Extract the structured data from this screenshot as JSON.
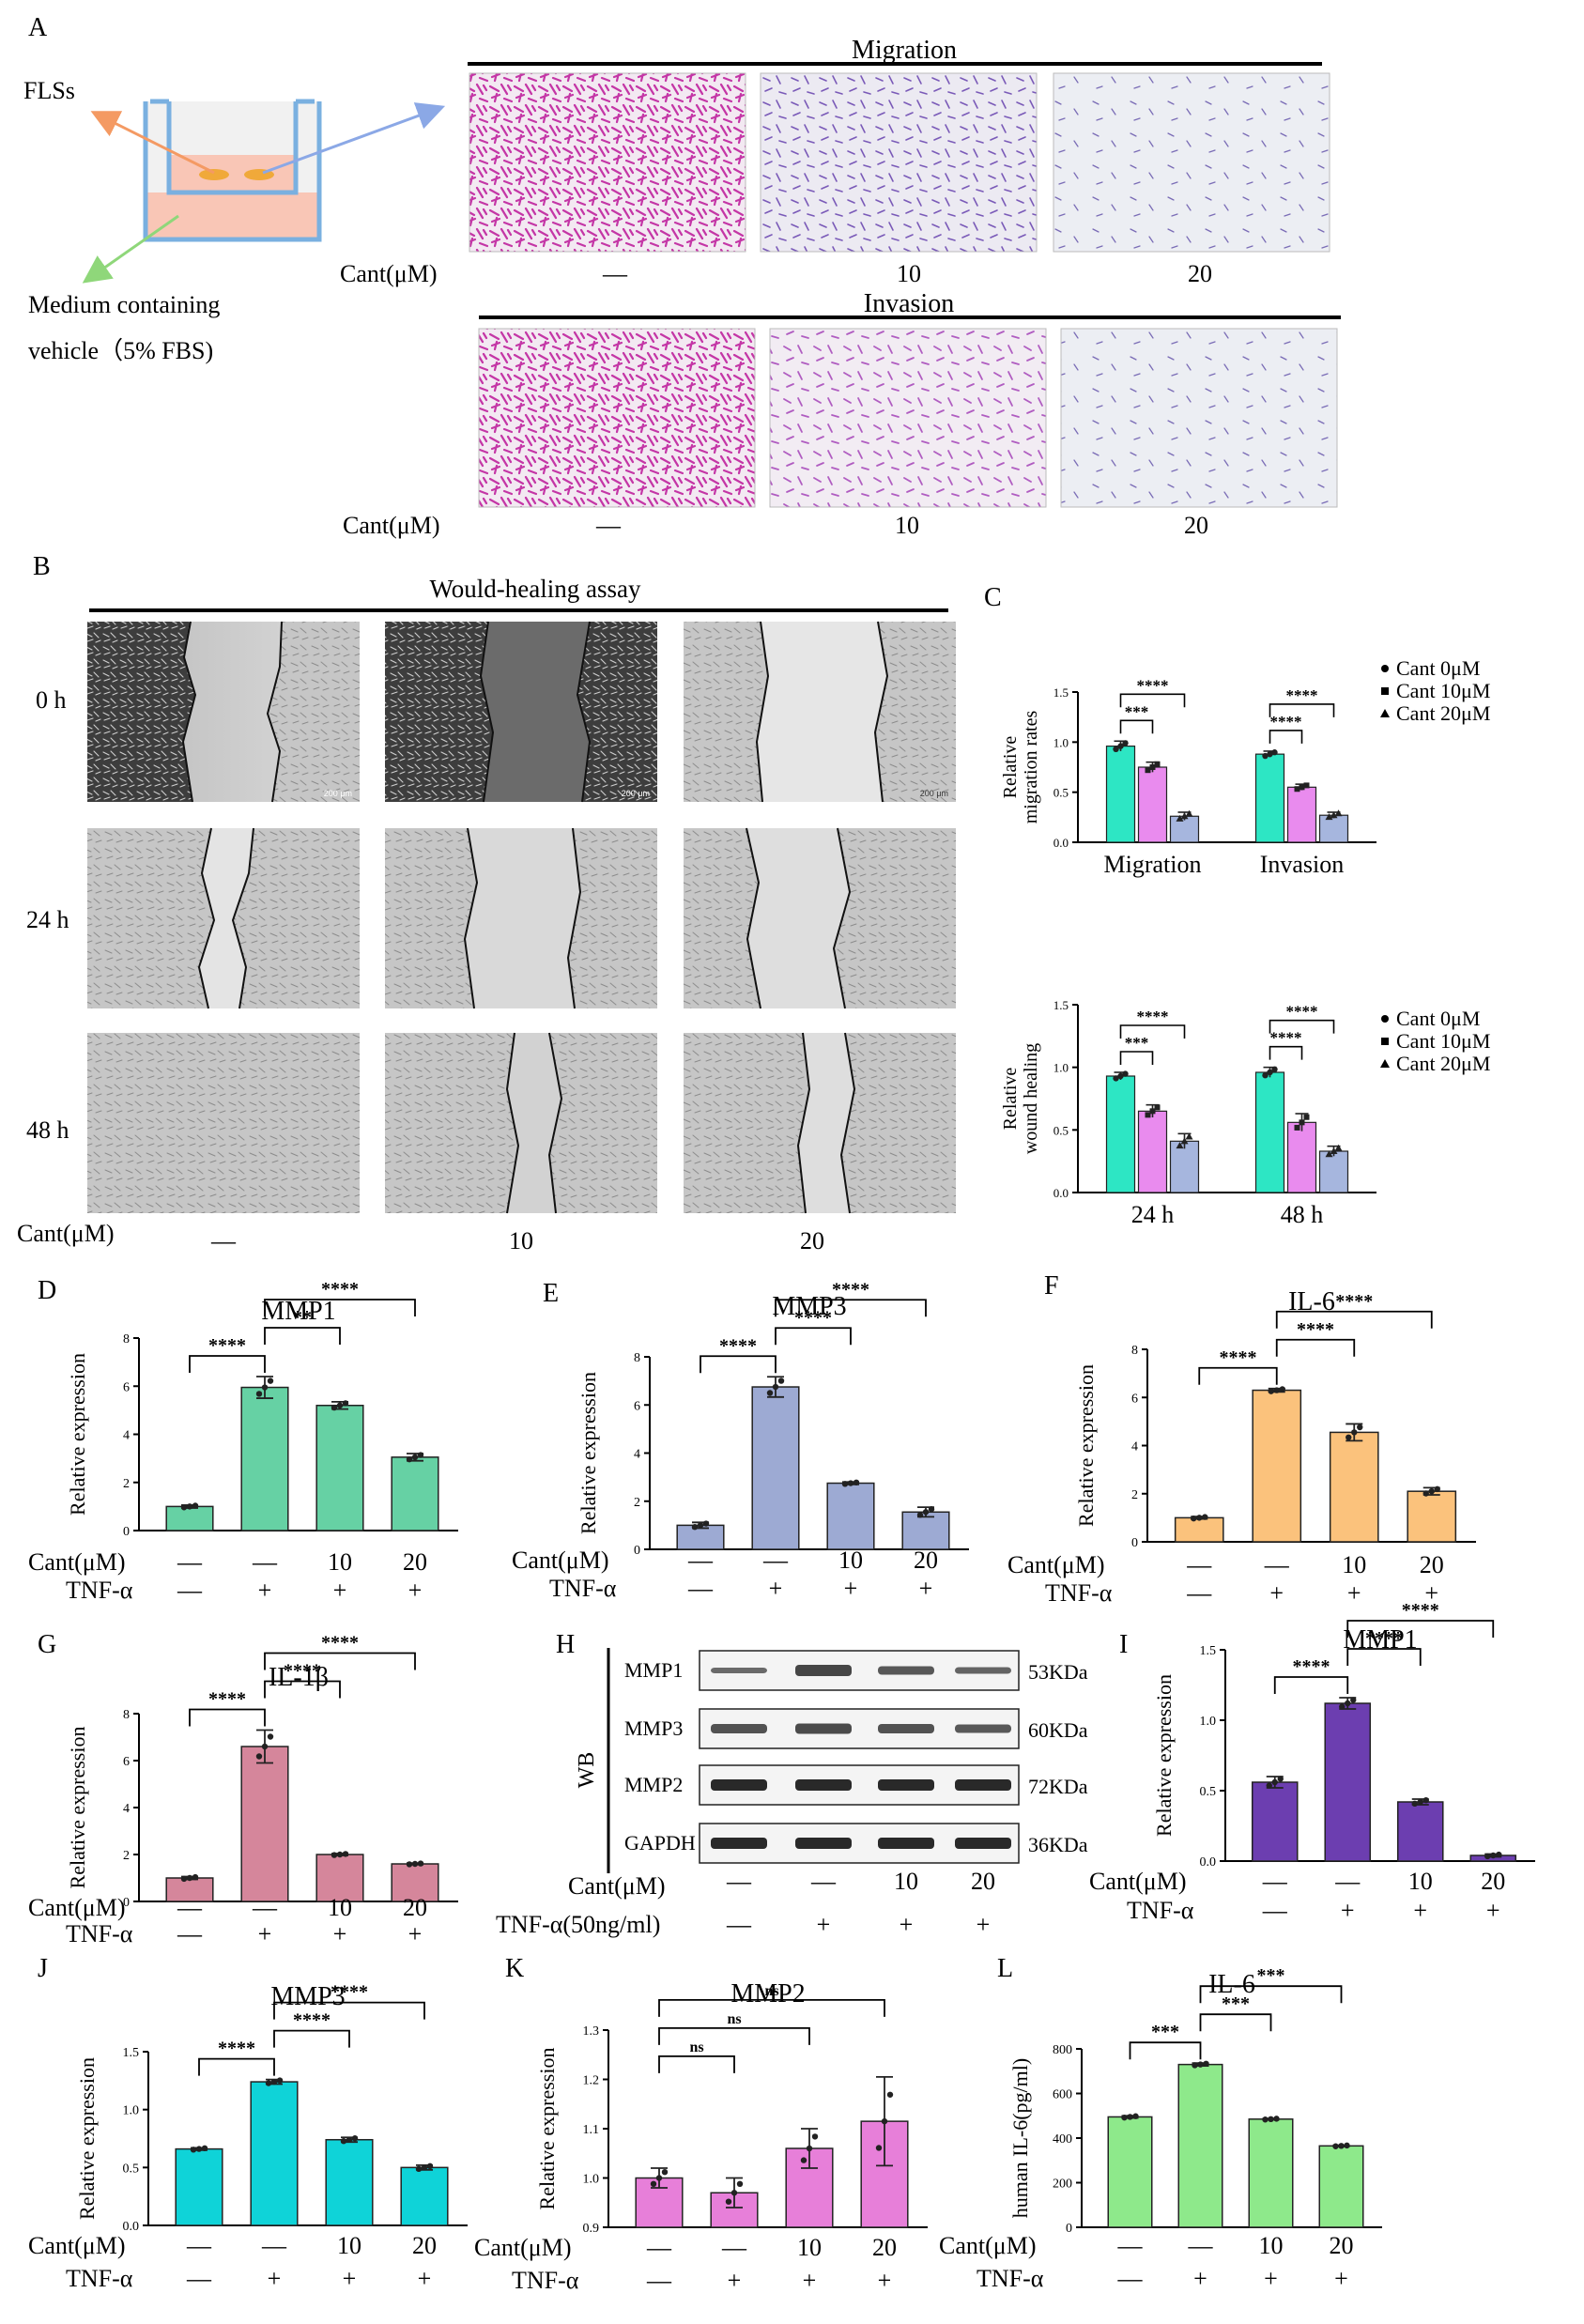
{
  "panel_a": {
    "letter": "A",
    "fls_label": "FLSs",
    "medium_line1": "Medium containing",
    "medium_line2": "vehicle（5% FBS)",
    "migration_title": "Migration",
    "invasion_title": "Invasion",
    "cant_label": "Cant(μM)",
    "doses": [
      "—",
      "10",
      "20"
    ]
  },
  "panel_b": {
    "letter": "B",
    "title": "Would-healing assay",
    "times": [
      "0 h",
      "24 h",
      "48 h"
    ],
    "cant_label": "Cant(μM)",
    "doses": [
      "—",
      "10",
      "20"
    ],
    "scale_label": "200 μm"
  },
  "panel_h": {
    "letter": "H",
    "side_label": "WB",
    "proteins": [
      "MMP1",
      "MMP3",
      "MMP2",
      "GAPDH"
    ],
    "sizes": [
      "53KDa",
      "60KDa",
      "72KDa",
      "36KDa"
    ],
    "cant_label": "Cant(μM)",
    "tnf_label": "TNF-α(50ng/ml)",
    "cant_values": [
      "—",
      "—",
      "10",
      "20"
    ],
    "tnf_values": [
      "—",
      "+",
      "+",
      "+"
    ]
  },
  "chart_data": [
    {
      "id": "C1",
      "letter": "C",
      "type": "bar",
      "ylabel": "Relative migration rates",
      "ylim": [
        0,
        1.5
      ],
      "yticks": [
        0.0,
        0.5,
        1.0,
        1.5
      ],
      "categories": [
        "Migration",
        "Invasion"
      ],
      "series": [
        {
          "name": "Cant 0μM",
          "color": "#2de6c4",
          "marker": "circle",
          "values": [
            0.96,
            0.88
          ],
          "errors": [
            0.05,
            0.03
          ]
        },
        {
          "name": "Cant 10μM",
          "color": "#e98bee",
          "marker": "square",
          "values": [
            0.75,
            0.55
          ],
          "errors": [
            0.05,
            0.03
          ]
        },
        {
          "name": "Cant 20μM",
          "color": "#a6b6de",
          "marker": "triangle",
          "values": [
            0.26,
            0.27
          ],
          "errors": [
            0.04,
            0.03
          ]
        }
      ],
      "significance": [
        {
          "group": 0,
          "from": 0,
          "to": 1,
          "label": "***"
        },
        {
          "group": 0,
          "from": 0,
          "to": 2,
          "label": "****"
        },
        {
          "group": 1,
          "from": 0,
          "to": 1,
          "label": "****"
        },
        {
          "group": 1,
          "from": 0,
          "to": 2,
          "label": "****"
        }
      ],
      "legend": "right"
    },
    {
      "id": "C2",
      "type": "bar",
      "ylabel": "Relative wound healing",
      "ylim": [
        0,
        1.5
      ],
      "yticks": [
        0.0,
        0.5,
        1.0,
        1.5
      ],
      "categories": [
        "24 h",
        "48 h"
      ],
      "series": [
        {
          "name": "Cant 0μM",
          "color": "#2de6c4",
          "marker": "circle",
          "values": [
            0.93,
            0.96
          ],
          "errors": [
            0.03,
            0.04
          ]
        },
        {
          "name": "Cant 10μM",
          "color": "#e98bee",
          "marker": "square",
          "values": [
            0.65,
            0.56
          ],
          "errors": [
            0.05,
            0.07
          ]
        },
        {
          "name": "Cant 20μM",
          "color": "#a6b6de",
          "marker": "triangle",
          "values": [
            0.41,
            0.33
          ],
          "errors": [
            0.06,
            0.04
          ]
        }
      ],
      "significance": [
        {
          "group": 0,
          "from": 0,
          "to": 1,
          "label": "***"
        },
        {
          "group": 0,
          "from": 0,
          "to": 2,
          "label": "****"
        },
        {
          "group": 1,
          "from": 0,
          "to": 1,
          "label": "****"
        },
        {
          "group": 1,
          "from": 0,
          "to": 2,
          "label": "****"
        }
      ],
      "legend": "right"
    },
    {
      "id": "D",
      "letter": "D",
      "type": "bar",
      "title": "MMP1",
      "ylabel": "Relative expression",
      "color": "#66d1a4",
      "ylim": [
        0,
        8
      ],
      "yticks": [
        0,
        2,
        4,
        6,
        8
      ],
      "values": [
        1.0,
        5.95,
        5.2,
        3.05
      ],
      "errors": [
        0.06,
        0.45,
        0.15,
        0.15
      ],
      "cant": [
        "—",
        "—",
        "10",
        "20"
      ],
      "tnf": [
        "—",
        "+",
        "+",
        "+"
      ],
      "significance": [
        {
          "from": 0,
          "to": 1,
          "label": "****"
        },
        {
          "from": 1,
          "to": 2,
          "label": "**"
        },
        {
          "from": 1,
          "to": 3,
          "label": "****"
        }
      ]
    },
    {
      "id": "E",
      "letter": "E",
      "type": "bar",
      "title": "MMP3",
      "ylabel": "Relative expression",
      "color": "#9daad3",
      "ylim": [
        0,
        8
      ],
      "yticks": [
        0,
        2,
        4,
        6,
        8
      ],
      "values": [
        1.0,
        6.75,
        2.75,
        1.55
      ],
      "errors": [
        0.12,
        0.42,
        0.05,
        0.2
      ],
      "cant": [
        "—",
        "—",
        "10",
        "20"
      ],
      "tnf": [
        "—",
        "+",
        "+",
        "+"
      ],
      "significance": [
        {
          "from": 0,
          "to": 1,
          "label": "****"
        },
        {
          "from": 1,
          "to": 2,
          "label": "****"
        },
        {
          "from": 1,
          "to": 3,
          "label": "****"
        }
      ]
    },
    {
      "id": "F",
      "letter": "F",
      "type": "bar",
      "title": "IL-6",
      "ylabel": "Relative expression",
      "color": "#fbc27c",
      "ylim": [
        0,
        8
      ],
      "yticks": [
        0,
        2,
        4,
        6,
        8
      ],
      "values": [
        1.0,
        6.3,
        4.55,
        2.1
      ],
      "errors": [
        0.05,
        0.07,
        0.35,
        0.15
      ],
      "cant": [
        "—",
        "—",
        "10",
        "20"
      ],
      "tnf": [
        "—",
        "+",
        "+",
        "+"
      ],
      "significance": [
        {
          "from": 0,
          "to": 1,
          "label": "****"
        },
        {
          "from": 1,
          "to": 2,
          "label": "****"
        },
        {
          "from": 1,
          "to": 3,
          "label": "****"
        }
      ]
    },
    {
      "id": "G",
      "letter": "G",
      "type": "bar",
      "title": "IL-1β",
      "ylabel": "Relative expression",
      "color": "#d5869b",
      "ylim": [
        0,
        8
      ],
      "yticks": [
        0,
        2,
        4,
        6,
        8
      ],
      "values": [
        1.0,
        6.6,
        2.0,
        1.6
      ],
      "errors": [
        0.06,
        0.7,
        0.04,
        0.03
      ],
      "cant": [
        "—",
        "—",
        "10",
        "20"
      ],
      "tnf": [
        "—",
        "+",
        "+",
        "+"
      ],
      "significance": [
        {
          "from": 0,
          "to": 1,
          "label": "****"
        },
        {
          "from": 1,
          "to": 2,
          "label": "****"
        },
        {
          "from": 1,
          "to": 3,
          "label": "****"
        }
      ]
    },
    {
      "id": "I",
      "letter": "I",
      "type": "bar",
      "title": "MMP1",
      "ylabel": "Relative expression",
      "color": "#6c3eb0",
      "ylim": [
        0,
        1.5
      ],
      "yticks": [
        0.0,
        0.5,
        1.0,
        1.5
      ],
      "values": [
        0.56,
        1.12,
        0.42,
        0.04
      ],
      "errors": [
        0.04,
        0.04,
        0.02,
        0.01
      ],
      "cant": [
        "—",
        "—",
        "10",
        "20"
      ],
      "tnf": [
        "—",
        "+",
        "+",
        "+"
      ],
      "significance": [
        {
          "from": 0,
          "to": 1,
          "label": "****"
        },
        {
          "from": 1,
          "to": 2,
          "label": "****"
        },
        {
          "from": 1,
          "to": 3,
          "label": "****"
        }
      ]
    },
    {
      "id": "J",
      "letter": "J",
      "type": "bar",
      "title": "MMP3",
      "ylabel": "Relative expression",
      "color": "#0fd3d8",
      "ylim": [
        0,
        1.5
      ],
      "yticks": [
        0.0,
        0.5,
        1.0,
        1.5
      ],
      "values": [
        0.66,
        1.24,
        0.74,
        0.5
      ],
      "errors": [
        0.01,
        0.02,
        0.02,
        0.02
      ],
      "cant": [
        "—",
        "—",
        "10",
        "20"
      ],
      "tnf": [
        "—",
        "+",
        "+",
        "+"
      ],
      "significance": [
        {
          "from": 0,
          "to": 1,
          "label": "****"
        },
        {
          "from": 1,
          "to": 2,
          "label": "****"
        },
        {
          "from": 1,
          "to": 3,
          "label": "****"
        }
      ]
    },
    {
      "id": "K",
      "letter": "K",
      "type": "bar",
      "title": "MMP2",
      "ylabel": "Relative expression",
      "color": "#e77fd9",
      "ylim": [
        0.9,
        1.3
      ],
      "yticks": [
        0.9,
        1.0,
        1.1,
        1.2,
        1.3
      ],
      "values": [
        1.0,
        0.97,
        1.06,
        1.115
      ],
      "errors": [
        0.02,
        0.03,
        0.04,
        0.09
      ],
      "cant": [
        "—",
        "—",
        "10",
        "20"
      ],
      "tnf": [
        "—",
        "+",
        "+",
        "+"
      ],
      "significance": [
        {
          "from": 0,
          "to": 1,
          "label": "ns"
        },
        {
          "from": 0,
          "to": 2,
          "label": "ns"
        },
        {
          "from": 0,
          "to": 3,
          "label": "ns"
        }
      ]
    },
    {
      "id": "L",
      "letter": "L",
      "type": "bar",
      "title": "IL-6",
      "ylabel": "human IL-6(pg/ml)",
      "color": "#8ee98b",
      "ylim": [
        0,
        800
      ],
      "yticks": [
        0,
        200,
        400,
        600,
        800
      ],
      "values": [
        495,
        730,
        485,
        365
      ],
      "errors": [
        5,
        6,
        3,
        3
      ],
      "cant": [
        "—",
        "—",
        "10",
        "20"
      ],
      "tnf": [
        "—",
        "+",
        "+",
        "+"
      ],
      "significance": [
        {
          "from": 0,
          "to": 1,
          "label": "***"
        },
        {
          "from": 1,
          "to": 2,
          "label": "***"
        },
        {
          "from": 1,
          "to": 3,
          "label": "***"
        }
      ]
    }
  ],
  "labels": {
    "cant": "Cant(μM)",
    "tnf": "TNF-α"
  }
}
